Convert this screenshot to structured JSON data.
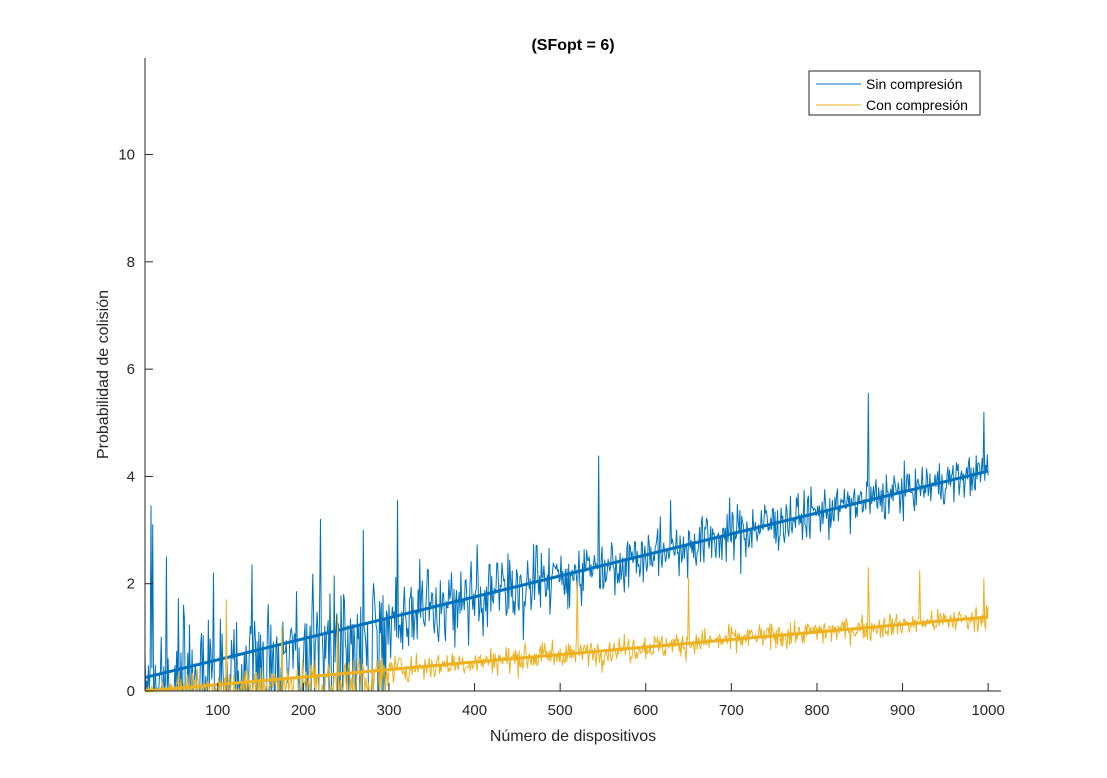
{
  "chart_data": {
    "type": "line",
    "title": "(SFopt = 6)",
    "xlabel": "Número de dispositivos",
    "ylabel": "Probabilidad de colisión",
    "xlim": [
      15,
      1015
    ],
    "ylim": [
      0,
      11.8
    ],
    "xticks": [
      100,
      200,
      300,
      400,
      500,
      600,
      700,
      800,
      900,
      1000
    ],
    "yticks": [
      0,
      2,
      4,
      6,
      8,
      10
    ],
    "grid": false,
    "legend_position": "top-right",
    "series": [
      {
        "name": "Sin compresión",
        "color": "#0072BD",
        "x_range": [
          15,
          1000
        ],
        "trend_start": [
          15,
          0.25
        ],
        "trend_end": [
          1000,
          4.1
        ],
        "noise_sd": [
          1.2,
          0.45
        ],
        "spikes": [
          [
            22,
            3.45
          ],
          [
            24,
            3.1
          ],
          [
            40,
            2.5
          ],
          [
            60,
            1.6
          ],
          [
            95,
            2.2
          ],
          [
            140,
            2.35
          ],
          [
            220,
            3.2
          ],
          [
            270,
            3.0
          ],
          [
            310,
            3.55
          ],
          [
            545,
            4.38
          ],
          [
            860,
            5.55
          ],
          [
            995,
            5.2
          ]
        ]
      },
      {
        "name": "Con compresión",
        "color": "#EDB120",
        "x_range": [
          15,
          1000
        ],
        "trend_start": [
          15,
          0.0
        ],
        "trend_end": [
          1000,
          1.38
        ],
        "noise_sd": [
          0.35,
          0.3
        ],
        "spikes": [
          [
            110,
            1.7
          ],
          [
            175,
            1.2
          ],
          [
            240,
            1.4
          ],
          [
            520,
            2.05
          ],
          [
            650,
            2.1
          ],
          [
            860,
            2.3
          ],
          [
            920,
            2.25
          ],
          [
            995,
            2.1
          ]
        ]
      }
    ]
  }
}
